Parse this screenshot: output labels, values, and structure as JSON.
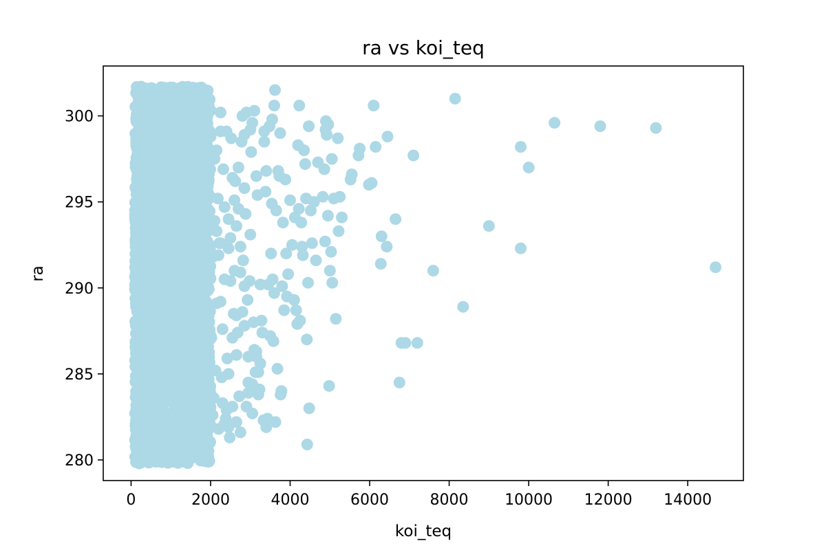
{
  "chart_data": {
    "type": "scatter",
    "title": "ra vs koi_teq",
    "xlabel": "koi_teq",
    "ylabel": "ra",
    "xlim": [
      -700,
      15400
    ],
    "ylim": [
      278.8,
      302.9
    ],
    "x_ticks": [
      0,
      2000,
      4000,
      6000,
      8000,
      10000,
      12000,
      14000
    ],
    "y_ticks": [
      280,
      285,
      290,
      295,
      300
    ],
    "grid": false,
    "legend": "none",
    "marker_color": "#add8e6",
    "series": [
      {
        "x": [
          8150,
          10650,
          11800,
          13200,
          14700,
          9800,
          10000,
          9000,
          9800,
          8350,
          7600,
          7100,
          6900,
          7200,
          6800,
          6750,
          6650,
          6450,
          6430,
          6300,
          6280,
          6150,
          6100,
          6050,
          5980,
          5750,
          5720,
          5550,
          5520,
          5300,
          5250,
          5220,
          5200,
          5150,
          5100,
          5060,
          5050,
          5030,
          5000,
          4980,
          4960,
          4950,
          4920,
          4900,
          4890,
          4880,
          4860,
          4820,
          4700,
          4650,
          4600,
          4550,
          4520,
          4480,
          4470,
          4450,
          4430,
          4420,
          4400,
          4380,
          4350,
          4320,
          4300,
          4280,
          4250,
          4230,
          4220,
          4200,
          4180,
          4150,
          4120,
          4100,
          4050,
          4000,
          3950,
          3920,
          3900,
          3880,
          3850,
          3820,
          3800,
          3780,
          3760,
          3750,
          3730,
          3700,
          3680,
          3650,
          3630,
          3620,
          3600,
          3580,
          3560,
          3550,
          3540,
          3520,
          3500,
          3480,
          3450,
          3430,
          3400,
          3380,
          3350,
          3330,
          3300,
          3280,
          3250,
          3230,
          3200,
          3180,
          3150,
          3130,
          3100,
          3080,
          3050,
          3020,
          3000,
          2980,
          2950,
          2930,
          2900,
          2880,
          2850,
          2820,
          2800,
          2780,
          2750,
          2720,
          2700,
          2680,
          2650,
          2620,
          2600,
          2580,
          2550,
          2520,
          2500,
          2480,
          2450,
          2420,
          2400,
          2380,
          2350,
          2320,
          2300,
          2280,
          2250,
          2220,
          2200,
          2180,
          2150,
          2120,
          2100,
          2080,
          2050,
          2020,
          2000,
          2150,
          2350,
          2550,
          2750,
          2950,
          3150,
          3350,
          2250,
          2450,
          2650,
          2850,
          3050,
          3250,
          2100,
          2300,
          2500,
          2700,
          2900,
          3100,
          2200,
          2400,
          2600,
          2800,
          3000,
          3200,
          3400,
          3600,
          2050,
          2250,
          2450,
          2650,
          2850,
          3050,
          2150,
          2350,
          2550,
          2750,
          2950,
          3150,
          2250,
          2450,
          2650,
          2850
        ],
        "y": [
          301.0,
          299.6,
          299.4,
          299.3,
          291.2,
          298.2,
          297.0,
          293.6,
          292.3,
          288.9,
          291.0,
          297.7,
          286.8,
          286.8,
          286.8,
          284.5,
          294.0,
          298.8,
          292.4,
          293.0,
          291.4,
          298.2,
          300.6,
          296.1,
          296.0,
          298.1,
          297.7,
          296.6,
          296.3,
          294.1,
          295.3,
          293.3,
          298.7,
          288.2,
          295.2,
          290.3,
          297.5,
          292.1,
          291.0,
          284.3,
          299.5,
          294.2,
          298.9,
          299.7,
          299.2,
          292.7,
          296.9,
          295.3,
          297.3,
          291.6,
          295.0,
          292.6,
          294.5,
          283.0,
          299.4,
          290.3,
          280.9,
          287.0,
          295.2,
          297.2,
          298.0,
          291.9,
          292.4,
          293.8,
          288.1,
          300.6,
          294.6,
          298.3,
          287.9,
          288.7,
          294.1,
          289.3,
          292.5,
          295.1,
          290.8,
          289.5,
          292.0,
          296.3,
          288.7,
          293.8,
          290.1,
          284.0,
          283.8,
          299.0,
          296.5,
          296.8,
          285.3,
          294.5,
          282.2,
          301.5,
          300.6,
          286.9,
          290.5,
          299.8,
          294.9,
          292.0,
          287.2,
          299.4,
          290.2,
          282.4,
          281.9,
          295.6,
          299.1,
          282.3,
          287.4,
          288.1,
          290.2,
          284.1,
          283.8,
          295.4,
          286.3,
          285.1,
          300.3,
          288.0,
          282.7,
          297.9,
          299.2,
          290.4,
          286.0,
          289.3,
          283.1,
          294.3,
          287.8,
          291.6,
          300.0,
          298.5,
          281.6,
          283.7,
          294.6,
          287.4,
          282.2,
          296.2,
          291.0,
          288.5,
          283.1,
          298.7,
          292.9,
          281.3,
          294.0,
          285.9,
          299.1,
          282.4,
          290.5,
          296.9,
          287.6,
          284.8,
          300.2,
          292.6,
          281.8,
          295.2,
          289.1,
          285.2,
          297.5,
          283.6,
          291.8,
          287.1,
          298.8,
          293.3,
          282.1,
          296.4,
          290.9,
          284.5,
          286.0,
          298.5,
          292.6,
          281.9,
          288.4,
          295.8,
          299.6,
          285.6,
          293.9,
          283.3,
          290.4,
          297.0,
          300.2,
          286.4,
          291.9,
          282.9,
          295.1,
          288.6,
          293.1,
          285.1,
          296.8,
          289.7,
          282.6,
          299.1,
          292.3,
          286.1,
          290.1,
          284.4,
          298.0,
          294.7,
          287.1,
          292.4,
          283.9,
          296.5,
          289.2,
          285.0,
          293.6,
          298.9
        ]
      },
      {
        "dense_band": true,
        "x_range": [
          100,
          2000
        ],
        "y_range": [
          279.8,
          301.7
        ],
        "x": [
          200,
          250,
          300,
          350,
          400,
          450,
          500,
          550,
          600,
          650,
          700,
          750,
          800,
          850,
          900,
          950,
          1000,
          1050,
          1100,
          1150,
          1200,
          1250,
          1300,
          1350,
          1400,
          1450,
          1500,
          1550,
          1600,
          1650,
          1700,
          1750,
          1800,
          1850,
          1900,
          1950,
          2000
        ],
        "y": [
          279.8,
          301.7,
          280.2,
          301.6,
          280.4,
          301.5,
          280.3,
          301.4,
          280.5,
          301.3,
          280.6,
          301.5,
          280.4,
          301.2,
          280.8,
          301.4,
          280.7,
          301.3,
          280.9,
          301.0,
          281.0,
          301.2,
          281.2,
          301.1,
          281.1,
          300.9,
          281.3,
          301.0,
          281.5,
          300.8,
          281.4,
          300.7,
          281.6,
          300.9,
          281.8,
          300.6,
          282.0
        ]
      }
    ]
  }
}
